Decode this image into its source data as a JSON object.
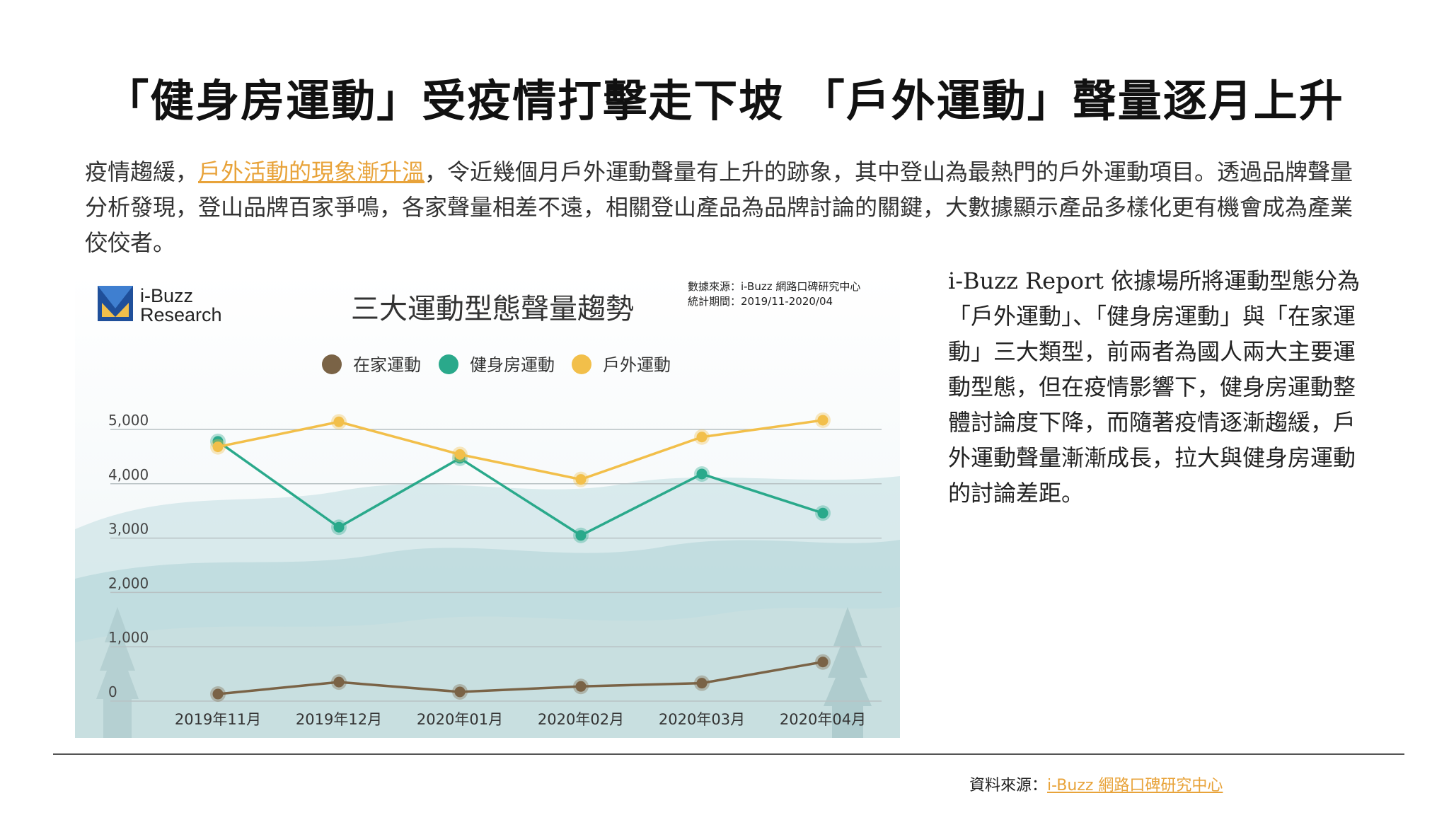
{
  "headline": "「健身房運動」受疫情打擊走下坡 「戶外運動」聲量逐月上升",
  "intro": {
    "before": "疫情趨緩，",
    "link": "戶外活動的現象漸升溫",
    "after": "，令近幾個月戶外運動聲量有上升的跡象，其中登山為最熱門的戶外運動項目。透過品牌聲量分析發現，登山品牌百家爭鳴，各家聲量相差不遠，相關登山產品為品牌討論的關鍵，大數據顯示產品多樣化更有機會成為產業佼佼者。"
  },
  "side_text": "i-Buzz Report 依據場所將運動型態分為「戶外運動」、「健身房運動」與「在家運動」三大類型，前兩者為國人兩大主要運動型態，但在疫情影響下，健身房運動整體討論度下降，而隨著疫情逐漸趨緩，戶外運動聲量漸漸成長，拉大與健身房運動的討論差距。",
  "footer": {
    "source_label": "資料來源：",
    "source_link": "i-Buzz 網路口碑研究中心"
  },
  "chart_data": {
    "type": "line",
    "title": "三大運動型態聲量趨勢",
    "logo_text": [
      "i-Buzz",
      "Research"
    ],
    "note_source": "數據來源：i-Buzz 網路口碑研究中心",
    "note_period": "統計期間：2019/11-2020/04",
    "categories": [
      "2019年11月",
      "2019年12月",
      "2020年01月",
      "2020年02月",
      "2020年03月",
      "2020年04月"
    ],
    "ylim": [
      0,
      5000
    ],
    "yticks": [
      0,
      1000,
      2000,
      3000,
      4000,
      5000
    ],
    "ytick_labels": [
      "0",
      "1,000",
      "2,000",
      "3,000",
      "4,000",
      "5,000"
    ],
    "grid": true,
    "legend_position": "top",
    "series": [
      {
        "name": "在家運動",
        "color": "#7a6346",
        "values": [
          130,
          350,
          170,
          270,
          330,
          720
        ]
      },
      {
        "name": "健身房運動",
        "color": "#2aa98b",
        "values": [
          4780,
          3200,
          4470,
          3050,
          4180,
          3460
        ]
      },
      {
        "name": "戶外運動",
        "color": "#f2bf4a",
        "values": [
          4680,
          5140,
          4540,
          4080,
          4860,
          5170
        ]
      }
    ]
  }
}
